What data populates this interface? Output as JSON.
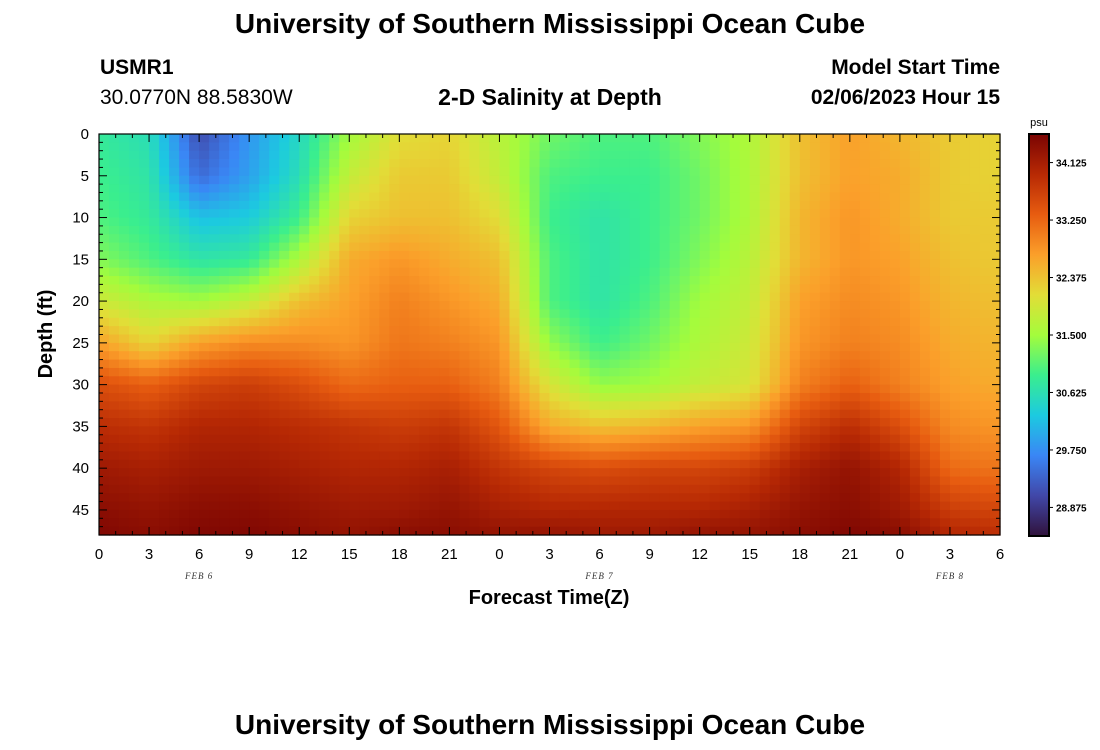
{
  "title": "University of Southern Mississippi Ocean Cube",
  "footer_title": "University of Southern Mississippi Ocean Cube",
  "station": {
    "id": "USMR1",
    "coords": "30.0770N  88.5830W"
  },
  "plot_title": "2-D Salinity at Depth",
  "model_start": {
    "label": "Model Start Time",
    "value": "02/06/2023 Hour 15"
  },
  "chart_data": {
    "type": "heatmap",
    "title": "2-D Salinity at Depth",
    "xlabel": "Forecast Time(Z)",
    "ylabel": "Depth (ft)",
    "x_tick_labels": [
      "0",
      "3",
      "6",
      "9",
      "12",
      "15",
      "18",
      "21",
      "0",
      "3",
      "6",
      "9",
      "12",
      "15",
      "18",
      "21",
      "0",
      "3",
      "6"
    ],
    "x_range_hours": [
      0,
      54
    ],
    "date_labels": [
      {
        "text": "FEB 6",
        "hour": 6
      },
      {
        "text": "FEB 7",
        "hour": 30
      },
      {
        "text": "FEB 8",
        "hour": 51
      }
    ],
    "y_tick_labels": [
      "0",
      "5",
      "10",
      "15",
      "20",
      "25",
      "30",
      "35",
      "40",
      "45"
    ],
    "y_range_ft": [
      0,
      48
    ],
    "colorbar": {
      "unit": "psu",
      "min": 28.44,
      "max": 34.56,
      "tick_labels": [
        "34.125",
        "33.250",
        "32.375",
        "31.500",
        "30.625",
        "29.750",
        "28.875"
      ]
    },
    "colormap": [
      "#30123b",
      "#4147a8",
      "#3a86f5",
      "#1ccae0",
      "#3aee8e",
      "#a4fc3c",
      "#e2dd37",
      "#fb9f2a",
      "#e75c10",
      "#b72904",
      "#7a0403"
    ],
    "salinity_profiles": {
      "depths_ft": [
        0,
        5,
        10,
        15,
        20,
        25,
        30,
        35,
        40,
        45,
        48
      ],
      "times_hours": [
        0,
        3,
        6,
        9,
        12,
        15,
        18,
        21,
        24,
        27,
        30,
        33,
        36,
        39,
        42,
        45,
        48,
        51,
        54
      ],
      "values_psu": [
        [
          30.8,
          30.9,
          31.0,
          31.3,
          31.9,
          32.7,
          33.5,
          33.9,
          34.2,
          34.4,
          34.5
        ],
        [
          30.6,
          30.7,
          30.8,
          31.0,
          31.6,
          32.2,
          33.3,
          33.8,
          34.1,
          34.3,
          34.4
        ],
        [
          29.1,
          29.4,
          30.2,
          30.7,
          31.5,
          32.7,
          33.6,
          34.0,
          34.2,
          34.4,
          34.5
        ],
        [
          29.8,
          29.9,
          30.3,
          30.8,
          31.8,
          32.9,
          33.7,
          34.0,
          34.2,
          34.4,
          34.5
        ],
        [
          30.5,
          30.6,
          30.9,
          31.6,
          32.4,
          32.9,
          33.5,
          33.9,
          34.1,
          34.3,
          34.4
        ],
        [
          31.5,
          31.8,
          32.2,
          32.6,
          32.7,
          32.8,
          33.2,
          33.8,
          34.0,
          34.2,
          34.3
        ],
        [
          32.1,
          32.3,
          32.4,
          32.8,
          33.0,
          33.1,
          33.3,
          33.7,
          34.0,
          34.2,
          34.4
        ],
        [
          32.2,
          32.3,
          32.4,
          32.6,
          32.8,
          33.0,
          33.3,
          33.8,
          34.1,
          34.3,
          34.4
        ],
        [
          31.7,
          31.8,
          32.1,
          32.4,
          32.6,
          32.8,
          33.0,
          33.4,
          33.8,
          34.1,
          34.3
        ],
        [
          31.2,
          31.0,
          30.9,
          31.0,
          31.0,
          31.4,
          32.0,
          32.6,
          33.6,
          34.0,
          34.3
        ],
        [
          31.0,
          30.9,
          30.7,
          30.7,
          30.7,
          30.9,
          31.4,
          32.4,
          33.5,
          34.0,
          34.2
        ],
        [
          31.0,
          30.9,
          30.9,
          30.9,
          31.0,
          31.2,
          31.5,
          32.5,
          33.6,
          34.0,
          34.2
        ],
        [
          31.3,
          31.2,
          31.2,
          31.3,
          31.5,
          31.6,
          31.8,
          32.7,
          33.6,
          34.0,
          34.3
        ],
        [
          31.6,
          31.6,
          31.6,
          31.7,
          31.8,
          31.9,
          32.0,
          32.8,
          33.7,
          34.1,
          34.3
        ],
        [
          32.4,
          32.4,
          32.5,
          32.5,
          32.7,
          32.8,
          33.0,
          33.6,
          34.1,
          34.3,
          34.4
        ],
        [
          32.7,
          32.7,
          32.8,
          32.8,
          32.9,
          33.0,
          33.3,
          33.9,
          34.3,
          34.4,
          34.5
        ],
        [
          32.5,
          32.6,
          32.6,
          32.7,
          32.8,
          32.9,
          33.0,
          33.5,
          34.0,
          34.2,
          34.4
        ],
        [
          32.3,
          32.3,
          32.3,
          32.4,
          32.5,
          32.6,
          32.7,
          32.9,
          33.2,
          33.7,
          34.0
        ],
        [
          32.2,
          32.2,
          32.3,
          32.3,
          32.4,
          32.5,
          32.6,
          32.8,
          33.1,
          33.6,
          33.9
        ]
      ]
    }
  }
}
